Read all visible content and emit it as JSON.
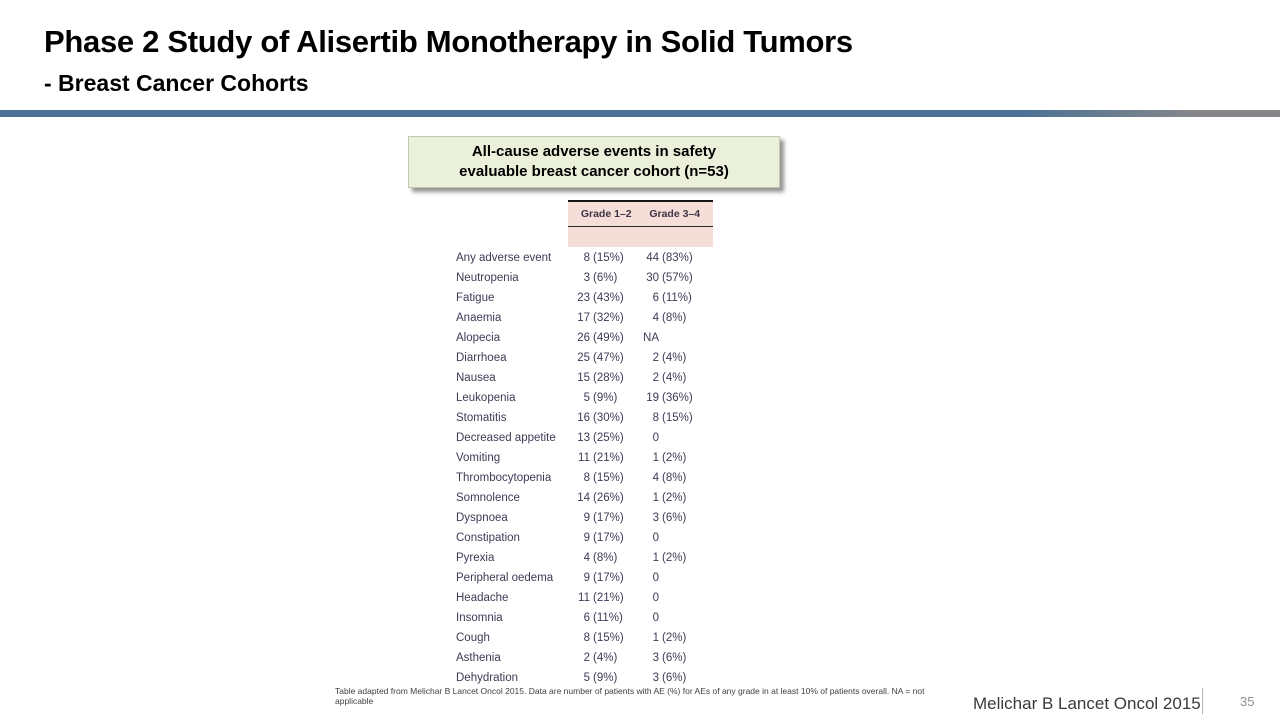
{
  "slide": {
    "title": "Phase 2 Study of Alisertib Monotherapy in Solid Tumors",
    "subtitle": "- Breast Cancer Cohorts",
    "footnote": "Table adapted from Melichar B Lancet Oncol 2015. Data are number of patients with AE (%) for AEs of any grade in at least 10% of patients overall. NA = not applicable",
    "citation": "Melichar B Lancet Oncol 2015",
    "page_number": "35"
  },
  "callout": {
    "text": "All-cause adverse events in safety evaluable breast cancer cohort (n=53)"
  },
  "chart_data": {
    "type": "table",
    "title": "All-cause adverse events in safety evaluable breast cancer cohort (n=53)",
    "col_headers": [
      "Grade 1–2",
      "Grade 3–4"
    ],
    "rows": [
      [
        "Any adverse event",
        "8 (15%)",
        "44 (83%)"
      ],
      [
        "Neutropenia",
        "3 (6%)",
        "30 (57%)"
      ],
      [
        "Fatigue",
        "23 (43%)",
        "6 (11%)"
      ],
      [
        "Anaemia",
        "17 (32%)",
        "4 (8%)"
      ],
      [
        "Alopecia",
        "26 (49%)",
        "NA"
      ],
      [
        "Diarrhoea",
        "25 (47%)",
        "2 (4%)"
      ],
      [
        "Nausea",
        "15 (28%)",
        "2 (4%)"
      ],
      [
        "Leukopenia",
        "5 (9%)",
        "19 (36%)"
      ],
      [
        "Stomatitis",
        "16 (30%)",
        "8 (15%)"
      ],
      [
        "Decreased appetite",
        "13 (25%)",
        "0"
      ],
      [
        "Vomiting",
        "11 (21%)",
        "1 (2%)"
      ],
      [
        "Thrombocytopenia",
        "8 (15%)",
        "4 (8%)"
      ],
      [
        "Somnolence",
        "14 (26%)",
        "1 (2%)"
      ],
      [
        "Dyspnoea",
        "9 (17%)",
        "3 (6%)"
      ],
      [
        "Constipation",
        "9 (17%)",
        "0"
      ],
      [
        "Pyrexia",
        "4 (8%)",
        "1 (2%)"
      ],
      [
        "Peripheral oedema",
        "9 (17%)",
        "0"
      ],
      [
        "Headache",
        "11 (21%)",
        "0"
      ],
      [
        "Insomnia",
        "6 (11%)",
        "0"
      ],
      [
        "Cough",
        "8 (15%)",
        "1 (2%)"
      ],
      [
        "Asthenia",
        "2 (4%)",
        "3 (6%)"
      ],
      [
        "Dehydration",
        "5 (9%)",
        "3 (6%)"
      ]
    ]
  },
  "colors": {
    "divider_blue": "#4c7296",
    "divider_gray": "#84868a",
    "table_header_bg": "#f6ded8",
    "table_text": "#3e3b55",
    "callout_bg": "#eaf0d9",
    "callout_border": "#c2c8b1",
    "page_number_gray": "#909090"
  }
}
